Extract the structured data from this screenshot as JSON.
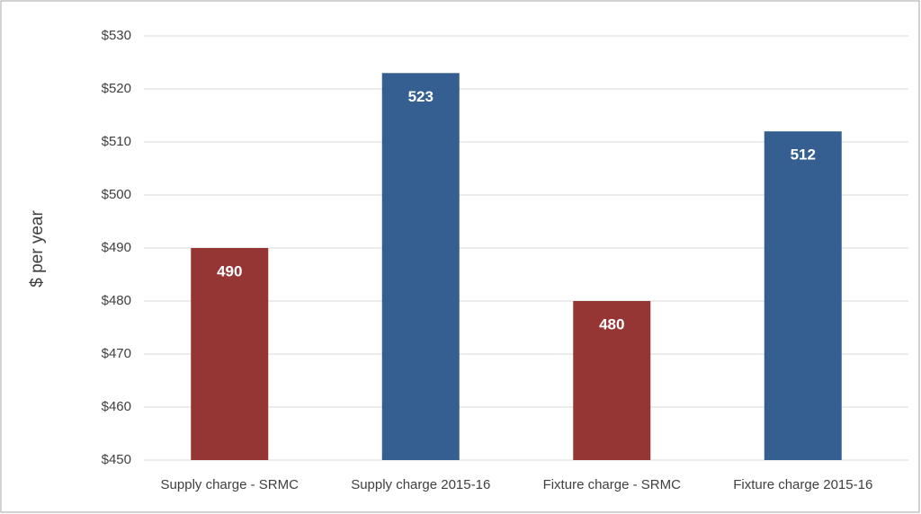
{
  "chart_data": {
    "type": "bar",
    "y_label": "$ per year",
    "categories": [
      "Supply charge - SRMC",
      "Supply charge 2015-16",
      "Fixture charge - SRMC",
      "Fixture charge 2015-16"
    ],
    "values": [
      490,
      523,
      480,
      512
    ],
    "colors": [
      "#963634",
      "#355f91",
      "#963634",
      "#355f91"
    ],
    "ylim": [
      450,
      530
    ],
    "yticks": [
      {
        "value": 450,
        "label": "$450"
      },
      {
        "value": 460,
        "label": "$460"
      },
      {
        "value": 470,
        "label": "$470"
      },
      {
        "value": 480,
        "label": "$480"
      },
      {
        "value": 490,
        "label": "$490"
      },
      {
        "value": 500,
        "label": "$500"
      },
      {
        "value": 510,
        "label": "$510"
      },
      {
        "value": 520,
        "label": "$520"
      },
      {
        "value": 530,
        "label": "$530"
      }
    ],
    "grid": true
  }
}
